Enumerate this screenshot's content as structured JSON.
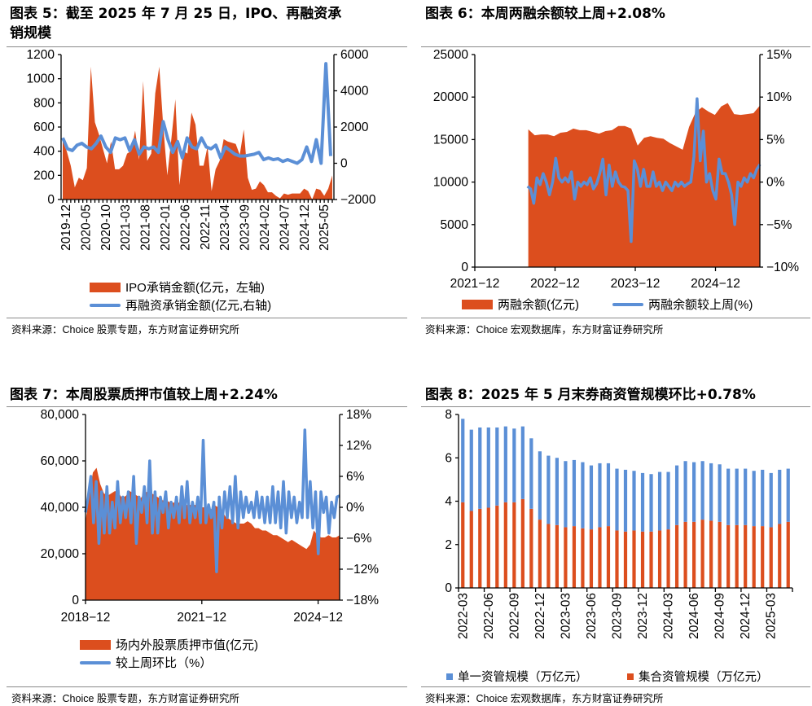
{
  "colors": {
    "orange": "#DC4E1E",
    "blue": "#5B8FD6"
  },
  "source_prefix": "资料来源：",
  "chart_data": [
    {
      "type": "area+line",
      "title": "图表 5：截至 2025 年 7 月 25 日，IPO、再融资承销规模",
      "title_lines": [
        "图表 5：截至 2025 年 7 月 25 日，IPO、再融资承",
        "销规模"
      ],
      "ylim_left": [
        0,
        1200
      ],
      "yticks_left": [
        "0",
        "200",
        "400",
        "600",
        "800",
        "1000",
        "1200"
      ],
      "ylim_right": [
        -2000,
        6000
      ],
      "yticks_right": [
        "-2000",
        "0",
        "2000",
        "4000",
        "6000"
      ],
      "xticks": [
        "2019-12",
        "2020-05",
        "2020-10",
        "2021-03",
        "2021-08",
        "2022-01",
        "2022-06",
        "2022-11",
        "2023-04",
        "2023-09",
        "2024-02",
        "2024-07",
        "2024-12",
        "2025-05"
      ],
      "series": [
        {
          "name": "IPO承销金额(亿元，左轴)",
          "type": "area",
          "axis": "left",
          "values": [
            480,
            400,
            280,
            100,
            180,
            160,
            260,
            1100,
            640,
            540,
            420,
            300,
            480,
            250,
            250,
            280,
            380,
            400,
            570,
            330,
            980,
            320,
            380,
            880,
            1100,
            600,
            200,
            500,
            830,
            120,
            400,
            380,
            720,
            620,
            280,
            280,
            440,
            70,
            250,
            320,
            500,
            480,
            470,
            460,
            370,
            580,
            180,
            80,
            90,
            150,
            120,
            60,
            60,
            30,
            10,
            50,
            40,
            50,
            50,
            50,
            90,
            70,
            0,
            90,
            80,
            30,
            90,
            200
          ]
        },
        {
          "name": "再融资承销金额(亿元,右轴)",
          "type": "line",
          "axis": "right",
          "values": [
            1400,
            800,
            700,
            1000,
            1100,
            900,
            800,
            1100,
            1500,
            900,
            600,
            1400,
            1300,
            1400,
            700,
            1300,
            500,
            900,
            800,
            900,
            600,
            2300,
            1300,
            600,
            1200,
            300,
            1400,
            900,
            800,
            1400,
            900,
            800,
            1000,
            300,
            900,
            700,
            500,
            400,
            400,
            450,
            500,
            600,
            200,
            300,
            200,
            250,
            100,
            200,
            100,
            0,
            200,
            900,
            100,
            1300,
            0,
            5500,
            400
          ]
        }
      ],
      "source": "Choice 股票专题，东方财富证券研究所"
    },
    {
      "type": "area+line",
      "title": "图表 6：本周两融余额较上周+2.08%",
      "ylim_left": [
        0,
        25000
      ],
      "yticks_left": [
        "0",
        "5000",
        "10000",
        "15000",
        "20000",
        "25000"
      ],
      "ylim_right": [
        -10,
        15
      ],
      "yticks_right": [
        "-10%",
        "-5%",
        "0%",
        "5%",
        "10%",
        "15%"
      ],
      "xticks": [
        "2021-12",
        "2022-12",
        "2023-12",
        "2024-12"
      ],
      "x_start": "2022-08",
      "x_end": "2025-07",
      "series": [
        {
          "name": "两融余额(亿元)",
          "type": "area",
          "axis": "left",
          "values": [
            16200,
            15500,
            15600,
            15600,
            15400,
            15800,
            15900,
            16300,
            16100,
            16100,
            15900,
            15700,
            16000,
            16100,
            16600,
            16600,
            16300,
            14300,
            15200,
            15400,
            15200,
            15100,
            14600,
            14200,
            13800,
            16500,
            18200,
            18800,
            18300,
            17900,
            18900,
            19300,
            18000,
            17900,
            18000,
            18100,
            19000
          ]
        },
        {
          "name": "两融余额较上周(%)",
          "type": "line",
          "axis": "right",
          "values": [
            -0.5,
            -0.8,
            -2.5,
            0.5,
            -0.3,
            1,
            0,
            -1.5,
            0,
            2.8,
            0.5,
            0,
            0.5,
            0,
            1.2,
            -2,
            0,
            -0.5,
            0,
            -0.3,
            0.5,
            -0.8,
            -0.2,
            1,
            2.7,
            -1.5,
            2,
            -0.5,
            1.2,
            0,
            -0.5,
            -0.6,
            -1,
            -7,
            2.5,
            1.5,
            -0.5,
            1.5,
            -0.5,
            -0.5,
            1.2,
            -0.5,
            0,
            -1,
            0,
            -0.5,
            -1,
            0,
            -0.5,
            0,
            -0.5,
            -0.2,
            0,
            3,
            9.8,
            2.5,
            6,
            0,
            1,
            -1,
            -2,
            2.7,
            1,
            1,
            0,
            -1.5,
            -5,
            0,
            -0.5,
            0.5,
            0,
            1,
            0.5,
            1.5,
            2.08
          ]
        }
      ],
      "source": "Choice 宏观数据库，东方财富证券研究所"
    },
    {
      "type": "area+line",
      "title": "图表 7：本周股票质押市值较上周+2.24%",
      "ylim_left": [
        0,
        80000
      ],
      "yticks_left": [
        "0",
        "20,000",
        "40,000",
        "60,000",
        "80,000"
      ],
      "ylim_right": [
        -18,
        18
      ],
      "yticks_right": [
        "-18%",
        "-12%",
        "-6%",
        "0%",
        "6%",
        "12%",
        "18%"
      ],
      "xticks": [
        "2018-12",
        "2021-12",
        "2024-12"
      ],
      "x_start": "2018-12",
      "x_end": "2025-07",
      "series": [
        {
          "name": "场内外股票质押市值(亿元)",
          "type": "area",
          "axis": "left",
          "values": [
            34000,
            45000,
            55000,
            57000,
            50000,
            46000,
            45000,
            46000,
            47000,
            46000,
            44000,
            45000,
            47000,
            46000,
            45000,
            44000,
            46000,
            47000,
            46000,
            45000,
            44000,
            43000,
            43000,
            42000,
            42000,
            42000,
            42000,
            41000,
            41000,
            41000,
            41000,
            40000,
            40000,
            40000,
            39000,
            41000,
            40000,
            39000,
            36000,
            35000,
            34000,
            33000,
            33000,
            33000,
            34000,
            33000,
            31000,
            31000,
            30000,
            30000,
            29000,
            28000,
            28000,
            27000,
            26000,
            25000,
            26000,
            25000,
            24000,
            23000,
            22000,
            24000,
            30000,
            28000,
            27000,
            27000,
            28000,
            27000,
            27000,
            28000
          ]
        },
        {
          "name": "较上周环比（%）",
          "type": "line",
          "axis": "right",
          "values": [
            -1,
            2,
            6,
            -3,
            5,
            -7,
            3,
            -5,
            4,
            -5,
            1,
            -4,
            5,
            -3,
            2,
            -2,
            3,
            -3,
            6,
            -7,
            2,
            -1,
            4,
            -3,
            9,
            -5,
            3,
            -5,
            2,
            -1,
            3,
            -4,
            1,
            -2,
            2,
            -3,
            4,
            -2,
            5,
            -3,
            1,
            -2,
            2,
            -3,
            13,
            -3,
            0.5,
            -2,
            1,
            -12.5,
            2,
            -4,
            3,
            -2,
            4,
            -3,
            6,
            -4,
            3,
            -2,
            2,
            -1,
            1,
            -2,
            3,
            -2,
            2,
            -3,
            2,
            -3,
            4,
            -3,
            3,
            -4,
            5,
            -5,
            3,
            -2,
            2,
            -3,
            1,
            -2,
            15,
            -2,
            5,
            -4,
            3,
            -9,
            3,
            -1,
            2,
            -5,
            1,
            -2,
            2,
            2.24
          ]
        }
      ],
      "source": "Choice 股票专题，东方财富证券研究所"
    },
    {
      "type": "stacked-bar",
      "title": "图表 8：2025 年 5 月末券商资管规模环比+0.78%",
      "ylim": [
        0,
        8
      ],
      "yticks": [
        "0",
        "2",
        "4",
        "6",
        "8"
      ],
      "xticks": [
        "2022-03",
        "2022-06",
        "2022-09",
        "2022-12",
        "2023-03",
        "2023-06",
        "2023-09",
        "2023-12",
        "2024-03",
        "2024-06",
        "2024-09",
        "2024-12",
        "2025-03"
      ],
      "months_start": "2022-03",
      "months_end": "2025-05",
      "series": [
        {
          "name": "集合资管规模（万亿元）",
          "values": [
            3.95,
            3.55,
            3.65,
            3.7,
            3.8,
            3.95,
            3.95,
            4.1,
            3.65,
            3.15,
            2.95,
            2.9,
            2.8,
            2.85,
            2.75,
            2.7,
            2.8,
            2.85,
            2.65,
            2.6,
            2.65,
            2.6,
            2.6,
            2.65,
            2.7,
            2.9,
            3.05,
            3.05,
            3.15,
            3.1,
            3.05,
            2.9,
            2.9,
            2.9,
            2.85,
            2.85,
            2.8,
            2.95,
            3.05
          ]
        },
        {
          "name": "单一资管规模（万亿元）",
          "values": [
            3.85,
            3.75,
            3.75,
            3.7,
            3.6,
            3.5,
            3.4,
            3.35,
            3.25,
            3.15,
            3.15,
            3.1,
            3.05,
            3.05,
            3.05,
            2.95,
            2.95,
            2.9,
            2.85,
            2.85,
            2.75,
            2.7,
            2.65,
            2.7,
            2.65,
            2.75,
            2.8,
            2.75,
            2.7,
            2.65,
            2.65,
            2.6,
            2.6,
            2.6,
            2.55,
            2.6,
            2.5,
            2.5,
            2.45
          ]
        }
      ],
      "source": "Choice 宏观数据库，东方财富证券研究所"
    }
  ]
}
